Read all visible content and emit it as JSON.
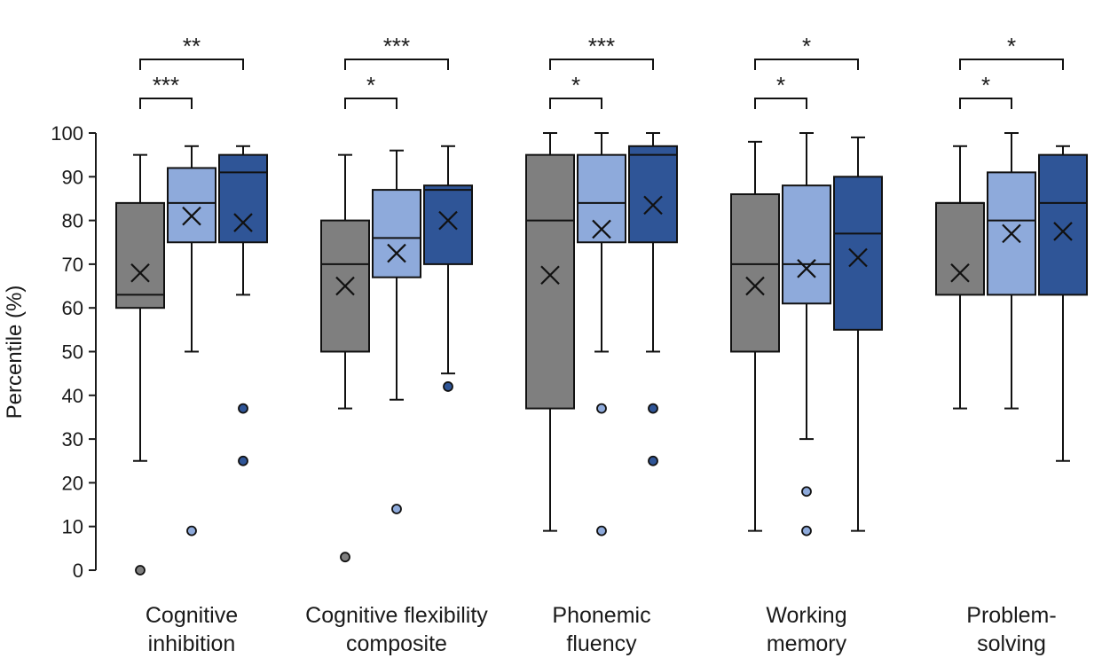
{
  "chart_data": {
    "type": "box",
    "ylabel": "Percentile (%)",
    "ylim": [
      0,
      100
    ],
    "yticks": [
      "0",
      "10",
      "20",
      "30",
      "40",
      "50",
      "60",
      "70",
      "80",
      "90",
      "100"
    ],
    "grid": false,
    "legend": "none",
    "series_colors": [
      "#7f7f7f",
      "#8eaadb",
      "#2f5597"
    ],
    "groups": [
      {
        "label": [
          "Cognitive",
          "inhibition"
        ],
        "boxes": [
          {
            "min": 25,
            "q1": 60,
            "median": 63,
            "q3": 84,
            "max": 95,
            "mean": 68,
            "outliers": [
              0
            ]
          },
          {
            "min": 50,
            "q1": 75,
            "median": 84,
            "q3": 92,
            "max": 97,
            "mean": 81,
            "outliers": [
              9
            ]
          },
          {
            "min": 63,
            "q1": 75,
            "median": 91,
            "q3": 95,
            "max": 97,
            "mean": 79.5,
            "outliers": [
              37,
              25
            ]
          }
        ],
        "significance": [
          {
            "from": 0,
            "to": 1,
            "label": "***"
          },
          {
            "from": 0,
            "to": 2,
            "label": "**"
          }
        ]
      },
      {
        "label": [
          "Cognitive flexibility",
          "composite"
        ],
        "boxes": [
          {
            "min": 37,
            "q1": 50,
            "median": 70,
            "q3": 80,
            "max": 95,
            "mean": 65,
            "outliers": [
              3
            ]
          },
          {
            "min": 39,
            "q1": 67,
            "median": 76,
            "q3": 87,
            "max": 96,
            "mean": 72.5,
            "outliers": [
              14
            ]
          },
          {
            "min": 45,
            "q1": 70,
            "median": 87,
            "q3": 88,
            "max": 97,
            "mean": 80,
            "outliers": [
              42
            ]
          }
        ],
        "significance": [
          {
            "from": 0,
            "to": 1,
            "label": "*"
          },
          {
            "from": 0,
            "to": 2,
            "label": "***"
          }
        ]
      },
      {
        "label": [
          "Phonemic",
          "fluency"
        ],
        "boxes": [
          {
            "min": 9,
            "q1": 37,
            "median": 80,
            "q3": 95,
            "max": 100,
            "mean": 67.5,
            "outliers": []
          },
          {
            "min": 50,
            "q1": 75,
            "median": 84,
            "q3": 95,
            "max": 100,
            "mean": 78,
            "outliers": [
              37,
              9
            ]
          },
          {
            "min": 50,
            "q1": 75,
            "median": 95,
            "q3": 97,
            "max": 100,
            "mean": 83.5,
            "outliers": [
              37,
              25
            ]
          }
        ],
        "significance": [
          {
            "from": 0,
            "to": 1,
            "label": "*"
          },
          {
            "from": 0,
            "to": 2,
            "label": "***"
          }
        ]
      },
      {
        "label": [
          "Working",
          "memory"
        ],
        "boxes": [
          {
            "min": 9,
            "q1": 50,
            "median": 70,
            "q3": 86,
            "max": 98,
            "mean": 65,
            "outliers": []
          },
          {
            "min": 30,
            "q1": 61,
            "median": 70,
            "q3": 88,
            "max": 100,
            "mean": 69,
            "outliers": [
              18,
              9
            ]
          },
          {
            "min": 9,
            "q1": 55,
            "median": 77,
            "q3": 90,
            "max": 99,
            "mean": 71.5,
            "outliers": []
          }
        ],
        "significance": [
          {
            "from": 0,
            "to": 1,
            "label": "*"
          },
          {
            "from": 0,
            "to": 2,
            "label": "*"
          }
        ]
      },
      {
        "label": [
          "Problem-",
          "solving"
        ],
        "boxes": [
          {
            "min": 37,
            "q1": 63,
            "median": 84,
            "q3": 84,
            "max": 97,
            "mean": 68,
            "outliers": []
          },
          {
            "min": 37,
            "q1": 63,
            "median": 80,
            "q3": 91,
            "max": 100,
            "mean": 77,
            "outliers": []
          },
          {
            "min": 25,
            "q1": 63,
            "median": 84,
            "q3": 95,
            "max": 97,
            "mean": 77.5,
            "outliers": []
          }
        ],
        "significance": [
          {
            "from": 0,
            "to": 1,
            "label": "*"
          },
          {
            "from": 0,
            "to": 2,
            "label": "*"
          }
        ]
      }
    ]
  }
}
